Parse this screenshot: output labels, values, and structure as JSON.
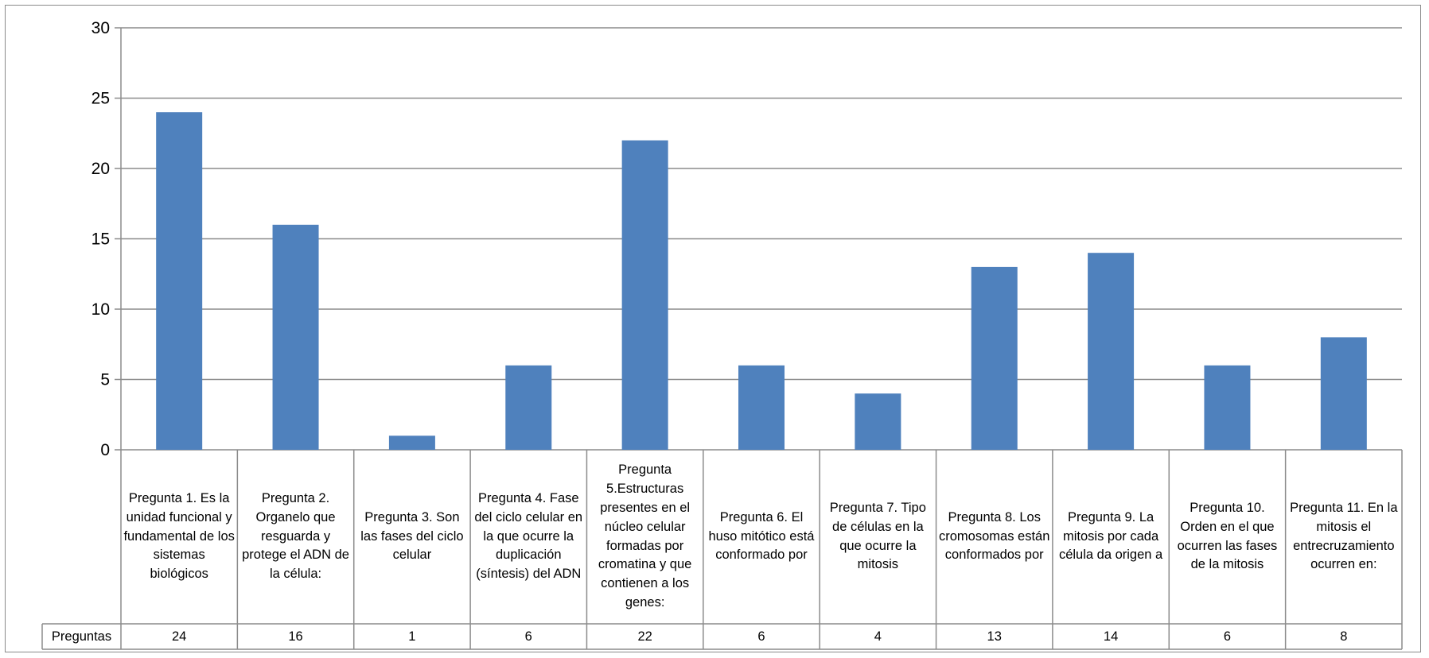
{
  "chart_data": {
    "type": "bar",
    "title": "",
    "xlabel": "",
    "ylabel": "",
    "ylim": [
      0,
      30
    ],
    "yticks": [
      0,
      5,
      10,
      15,
      20,
      25,
      30
    ],
    "grid": true,
    "legend": "none",
    "data_table": true,
    "categories": [
      "Pregunta 1. Es la unidad funcional y fundamental de los sistemas biológicos",
      "Pregunta 2. Organelo que resguarda y protege el ADN de la célula:",
      "Pregunta 3. Son las fases del ciclo celular",
      "Pregunta 4. Fase del ciclo celular en la que ocurre la duplicación (síntesis) del ADN",
      "Pregunta 5.Estructuras presentes en el núcleo celular formadas por cromatina y que contienen a los genes:",
      "Pregunta 6. El huso mitótico está conformado por",
      "Pregunta 7. Tipo de células en la que ocurre la mitosis",
      "Pregunta 8. Los cromosomas están conformados por",
      "Pregunta 9. La mitosis por cada célula da origen a",
      "Pregunta 10. Orden en el que ocurren las fases de la mitosis",
      "Pregunta 11. En la mitosis el entrecruzamiento ocurren en:"
    ],
    "series": [
      {
        "name": "Preguntas",
        "values": [
          24,
          16,
          1,
          6,
          22,
          6,
          4,
          13,
          14,
          6,
          8
        ],
        "color": "#4f81bd"
      }
    ]
  }
}
